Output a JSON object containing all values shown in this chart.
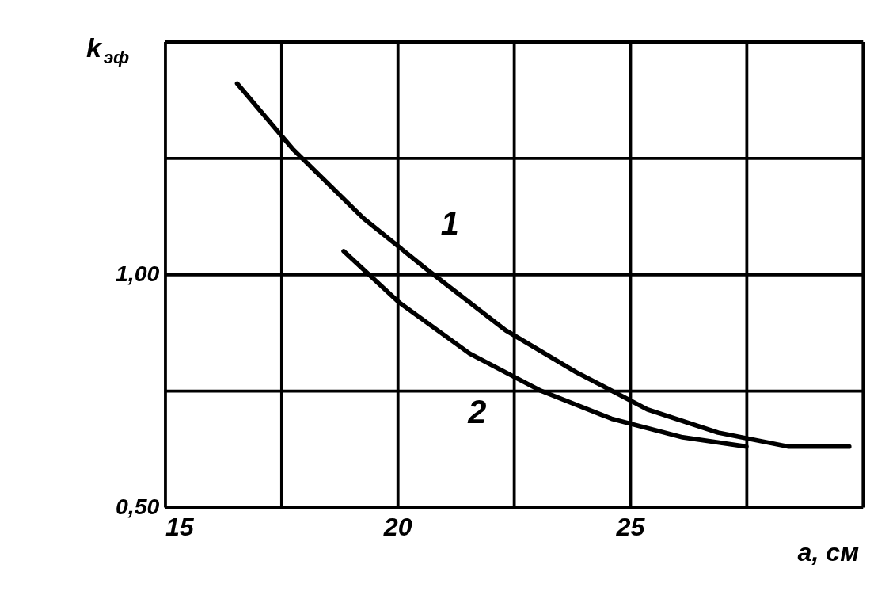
{
  "chart_data": {
    "type": "line",
    "xlabel": "a, см",
    "ylabel": "k$_{эф}$",
    "xlim": [
      15,
      30
    ],
    "ylim": [
      0.5,
      1.5
    ],
    "xticks": [
      15,
      {
        "value": 17.5,
        "label": null
      },
      20,
      {
        "value": 22.5,
        "label": null
      },
      25,
      {
        "value": 27.5,
        "label": null
      },
      {
        "value": 30,
        "label": null
      }
    ],
    "yticks": [
      {
        "value": 0.5,
        "label": "0,50"
      },
      {
        "value": 0.75,
        "label": null
      },
      {
        "value": 1.0,
        "label": "1,00"
      },
      {
        "value": 1.25,
        "label": null
      },
      {
        "value": 1.5,
        "label": null
      }
    ],
    "grid": true,
    "marker": "none",
    "line_style": "solid",
    "series": [
      {
        "name": "1",
        "color": "#000000",
        "x": [
          16.55,
          17.74,
          19.27,
          20.64,
          22.32,
          23.84,
          25.37,
          26.89,
          28.41,
          29.71
        ],
        "values": [
          1.41,
          1.27,
          1.12,
          1.01,
          0.88,
          0.79,
          0.71,
          0.66,
          0.63,
          0.63
        ]
      },
      {
        "name": "2",
        "color": "#000000",
        "x": [
          18.84,
          20.03,
          21.55,
          23.08,
          24.6,
          26.13,
          27.5
        ],
        "values": [
          1.05,
          0.94,
          0.83,
          0.75,
          0.69,
          0.65,
          0.63
        ]
      }
    ]
  }
}
